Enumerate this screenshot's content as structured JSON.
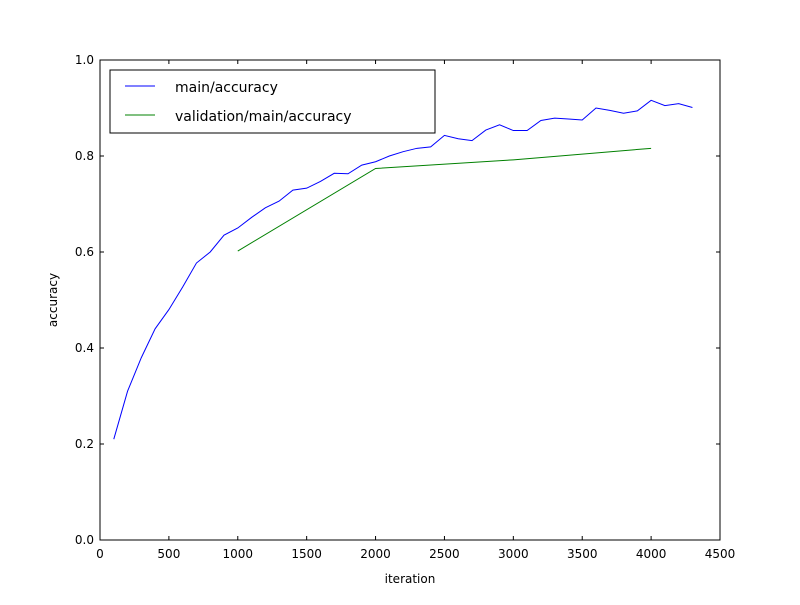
{
  "chart_data": {
    "type": "line",
    "title": "",
    "xlabel": "iteration",
    "ylabel": "accuracy",
    "xlim": [
      0,
      4500
    ],
    "ylim": [
      0.0,
      1.0
    ],
    "xticks": [
      0,
      500,
      1000,
      1500,
      2000,
      2500,
      3000,
      3500,
      4000,
      4500
    ],
    "xtick_labels": [
      "0",
      "500",
      "1000",
      "1500",
      "2000",
      "2500",
      "3000",
      "3500",
      "4000",
      "4500"
    ],
    "yticks": [
      0.0,
      0.2,
      0.4,
      0.6,
      0.8,
      1.0
    ],
    "ytick_labels": [
      "0.0",
      "0.2",
      "0.4",
      "0.6",
      "0.8",
      "1.0"
    ],
    "grid": false,
    "legend_position": "upper-left",
    "series": [
      {
        "name": "main/accuracy",
        "color": "#0000ff",
        "x": [
          100,
          200,
          300,
          400,
          500,
          600,
          700,
          800,
          900,
          1000,
          1100,
          1200,
          1300,
          1400,
          1500,
          1600,
          1700,
          1800,
          1900,
          2000,
          2100,
          2200,
          2300,
          2400,
          2500,
          2600,
          2700,
          2800,
          2900,
          3000,
          3100,
          3200,
          3300,
          3400,
          3500,
          3600,
          3700,
          3800,
          3900,
          4000,
          4100,
          4200,
          4300
        ],
        "y": [
          0.21,
          0.31,
          0.38,
          0.44,
          0.48,
          0.527,
          0.577,
          0.6,
          0.635,
          0.65,
          0.672,
          0.692,
          0.706,
          0.729,
          0.733,
          0.747,
          0.764,
          0.763,
          0.781,
          0.788,
          0.8,
          0.809,
          0.816,
          0.819,
          0.843,
          0.836,
          0.832,
          0.854,
          0.865,
          0.853,
          0.853,
          0.874,
          0.879,
          0.877,
          0.875,
          0.9,
          0.895,
          0.889,
          0.894,
          0.916,
          0.905,
          0.909,
          0.901
        ]
      },
      {
        "name": "validation/main/accuracy",
        "color": "#008000",
        "x": [
          1000,
          2000,
          3000,
          4000
        ],
        "y": [
          0.602,
          0.774,
          0.792,
          0.816
        ]
      }
    ]
  }
}
